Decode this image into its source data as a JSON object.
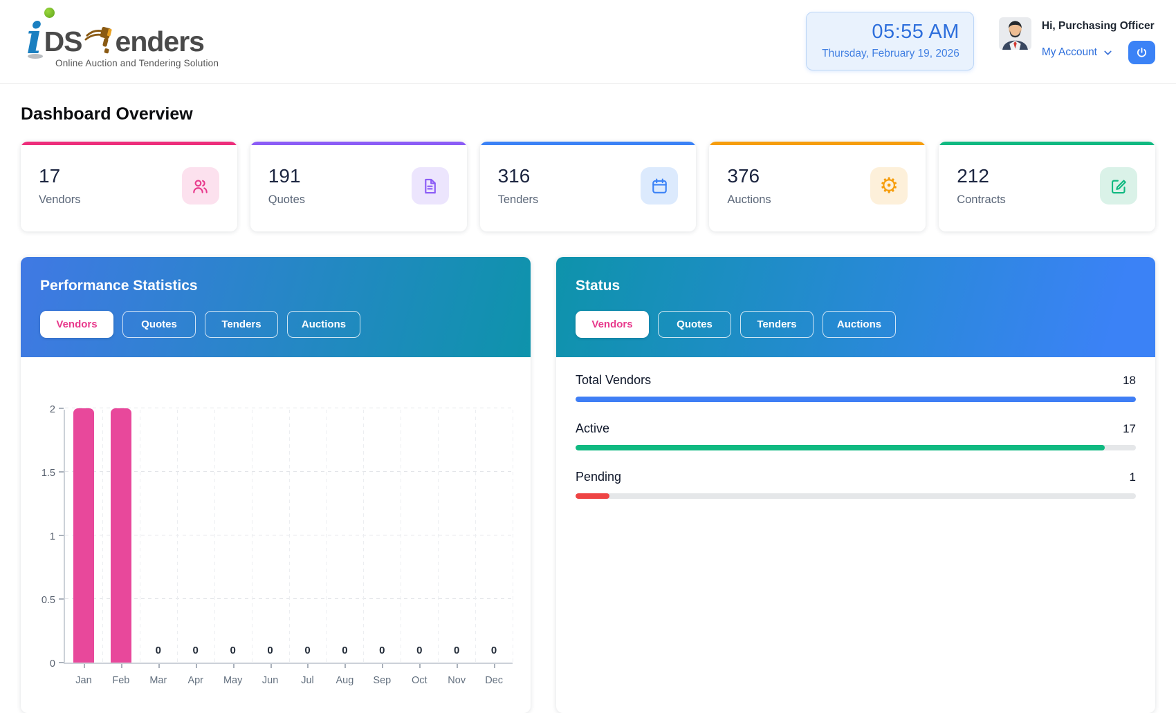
{
  "header": {
    "logo": {
      "part_i": "i",
      "part_ds": "DS",
      "part_enders": "enders",
      "tagline": "Online Auction and Tendering Solution",
      "colors": {
        "i": "#1a7fc0",
        "dot": "#6fbe2a",
        "text": "#4a4a4a",
        "gavel": "#8a5a13"
      }
    },
    "clock": {
      "time": "05:55 AM",
      "date": "Thursday, February 19, 2026",
      "text_color": "#2e6fdc"
    },
    "user": {
      "greeting": "Hi, Purchasing Officer",
      "account_label": "My Account",
      "accent": "#3b82f6"
    }
  },
  "page_title": "Dashboard Overview",
  "stat_cards": [
    {
      "value": "17",
      "label": "Vendors",
      "icon": "users-icon",
      "accent": "#ed2e7b",
      "icon_color": "#e8398c",
      "icon_bg": "#fce1ee"
    },
    {
      "value": "191",
      "label": "Quotes",
      "icon": "document-icon",
      "accent": "#8b5cf6",
      "icon_color": "#8b5cf6",
      "icon_bg": "#ece5fd"
    },
    {
      "value": "316",
      "label": "Tenders",
      "icon": "calendar-icon",
      "accent": "#3b82f6",
      "icon_color": "#3b82f6",
      "icon_bg": "#dceafd"
    },
    {
      "value": "376",
      "label": "Auctions",
      "icon": "gear-icon",
      "accent": "#f69d0c",
      "icon_color": "#f69d0c",
      "icon_bg": "#fdf0da"
    },
    {
      "value": "212",
      "label": "Contracts",
      "icon": "edit-square-icon",
      "accent": "#10b981",
      "icon_color": "#10b981",
      "icon_bg": "#daf2e8"
    }
  ],
  "performance_panel": {
    "title": "Performance Statistics",
    "tabs": [
      {
        "label": "Vendors",
        "active": true
      },
      {
        "label": "Quotes",
        "active": false
      },
      {
        "label": "Tenders",
        "active": false
      },
      {
        "label": "Auctions",
        "active": false
      }
    ],
    "active_tab_color": "#e8398c",
    "header_gradient": [
      "#4079e4",
      "#0e93ab"
    ],
    "chart_data": {
      "type": "bar",
      "series_name": "Vendors",
      "categories": [
        "Jan",
        "Feb",
        "Mar",
        "Apr",
        "May",
        "Jun",
        "Jul",
        "Aug",
        "Sep",
        "Oct",
        "Nov",
        "Dec"
      ],
      "values": [
        2,
        2,
        0,
        0,
        0,
        0,
        0,
        0,
        0,
        0,
        0,
        0
      ],
      "bar_color": "#e8489b",
      "ylim": [
        0,
        2
      ],
      "yticks": [
        0,
        0.5,
        1,
        1.5,
        2
      ],
      "grid": true,
      "zero_value_labels_shown": true,
      "legend": "none"
    }
  },
  "status_panel": {
    "title": "Status",
    "tabs": [
      {
        "label": "Vendors",
        "active": true
      },
      {
        "label": "Quotes",
        "active": false
      },
      {
        "label": "Tenders",
        "active": false
      },
      {
        "label": "Auctions",
        "active": false
      }
    ],
    "active_tab_color": "#e8398c",
    "header_gradient": [
      "#0e93ab",
      "#3b82f6"
    ],
    "rows": [
      {
        "label": "Total Vendors",
        "value": 18,
        "max": 18,
        "color": "#3f7ef5"
      },
      {
        "label": "Active",
        "value": 17,
        "max": 18,
        "color": "#10b981"
      },
      {
        "label": "Pending",
        "value": 1,
        "max": 18,
        "color": "#ee4444"
      }
    ]
  }
}
